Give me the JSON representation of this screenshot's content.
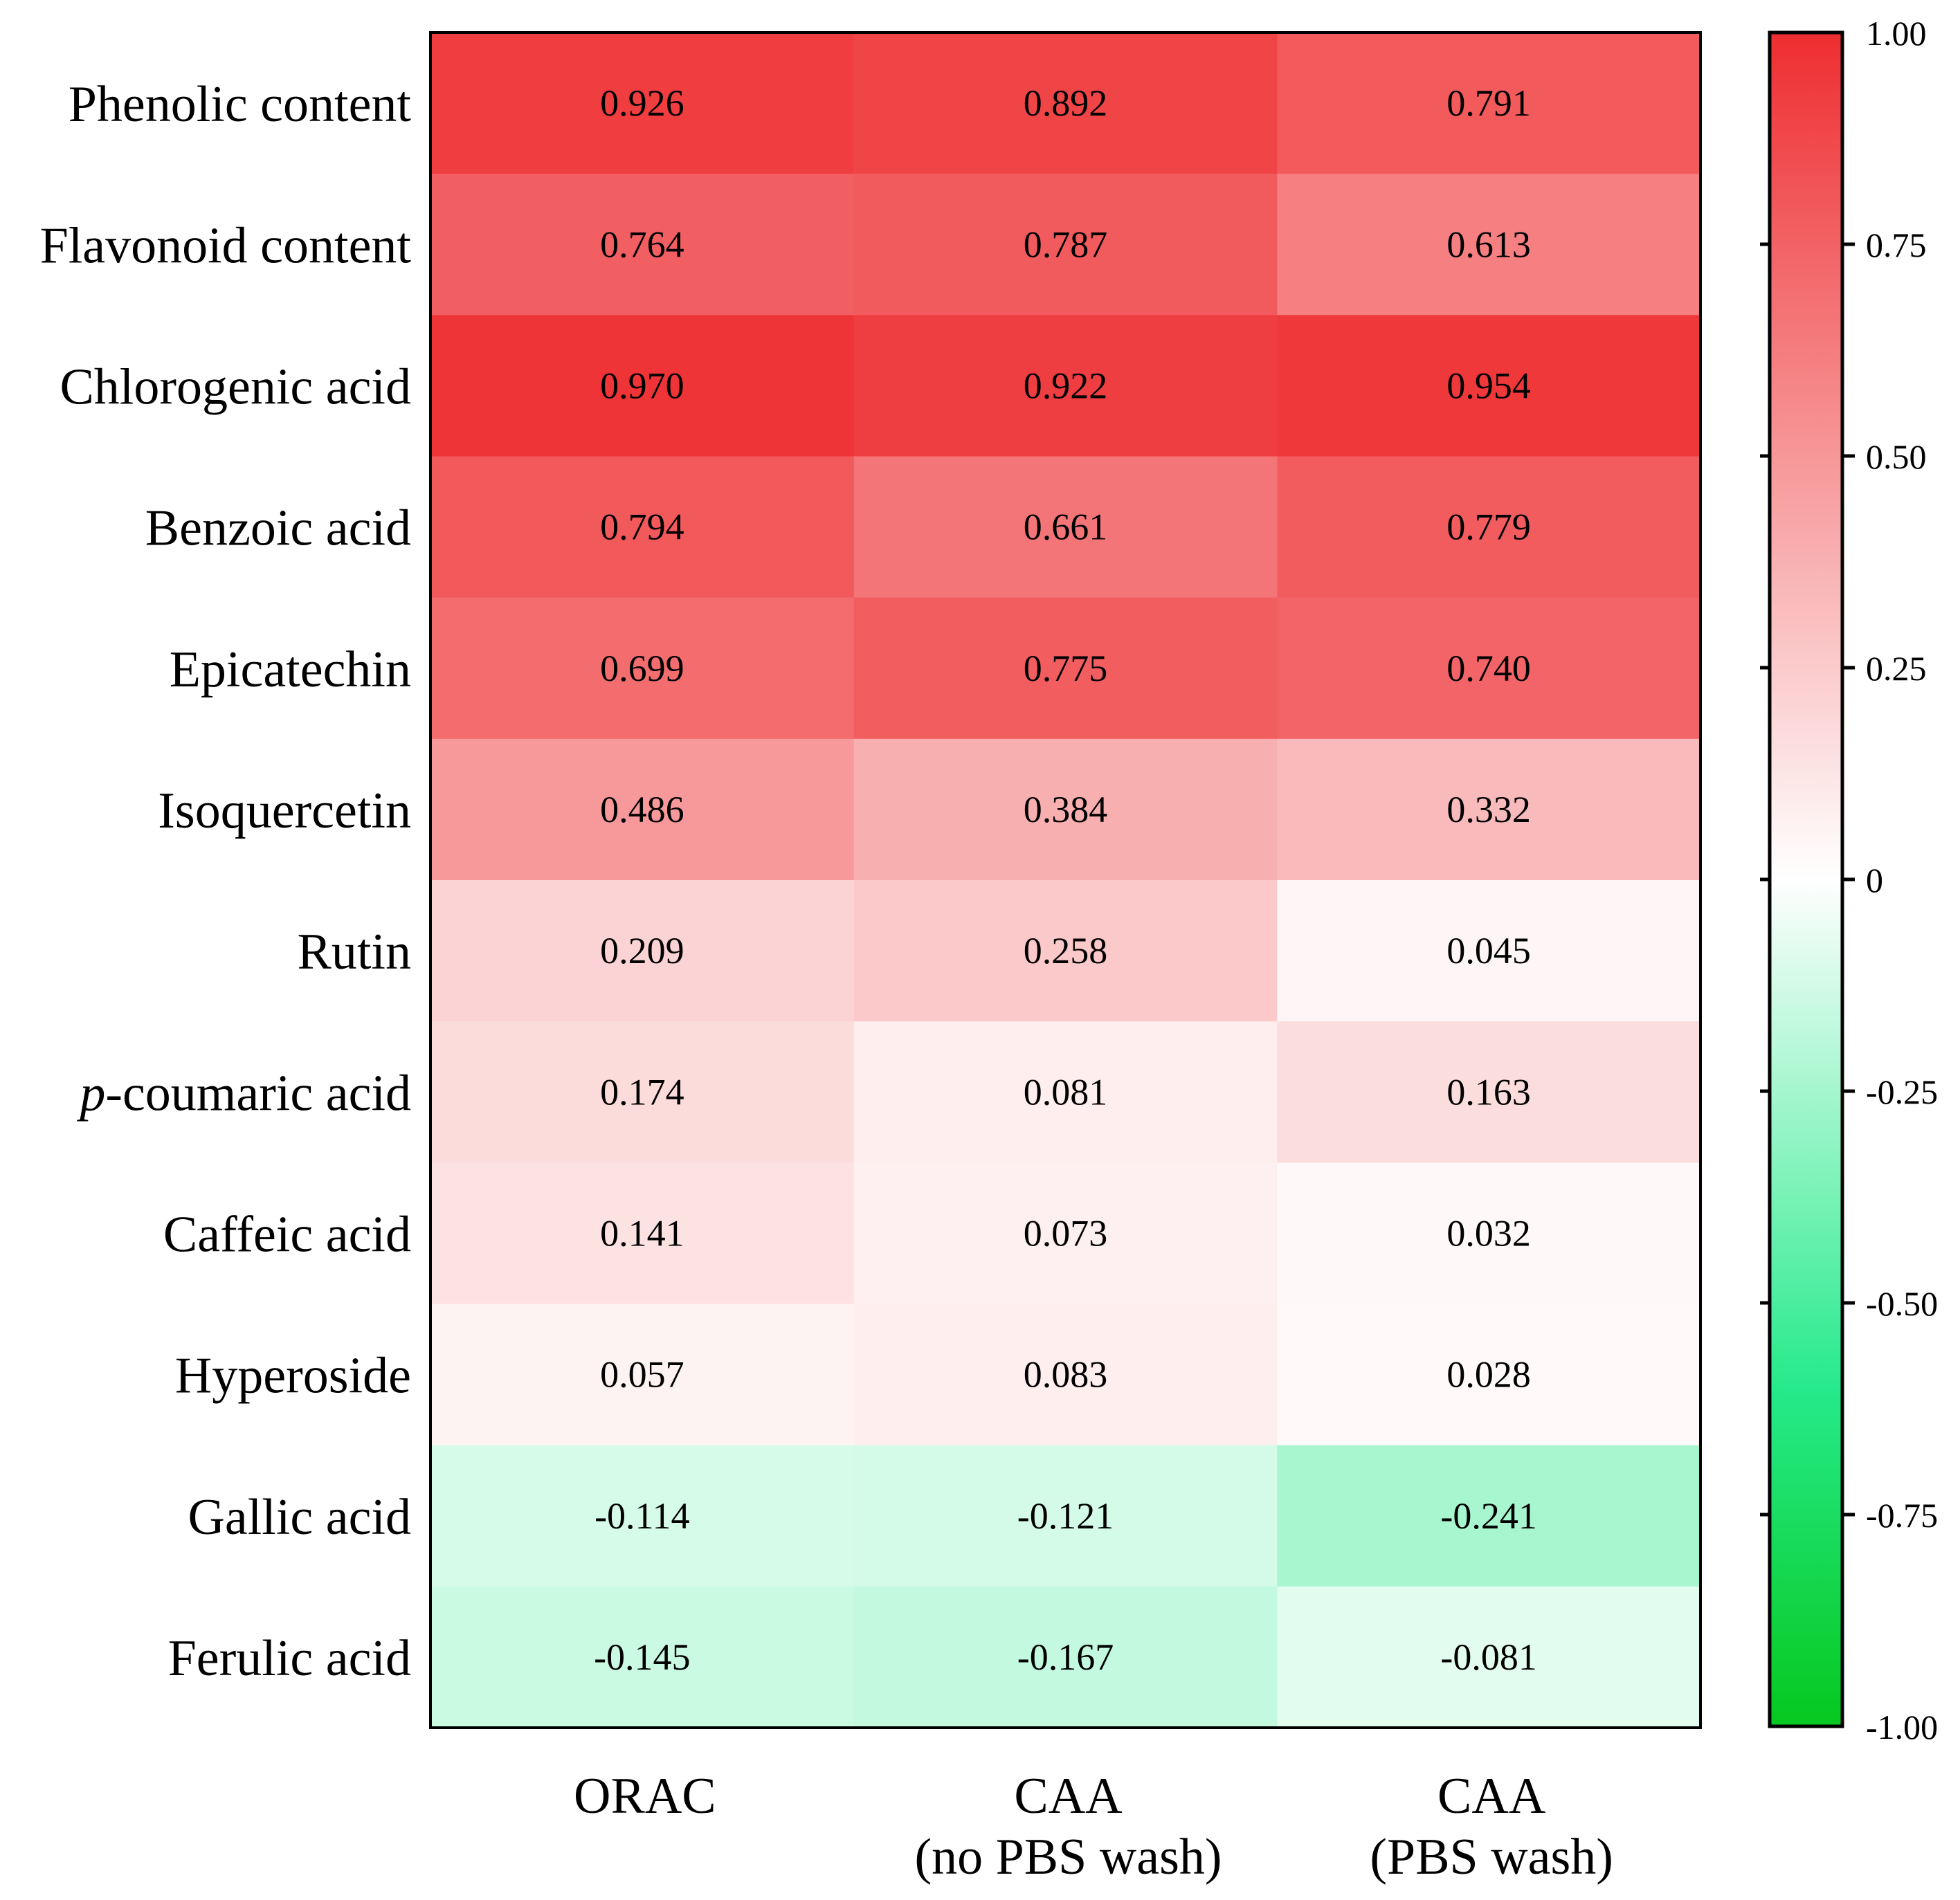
{
  "chart_data": {
    "type": "heatmap",
    "rows": [
      "Phenolic content",
      "Flavonoid content",
      "Chlorogenic acid",
      "Benzoic acid",
      "Epicatechin",
      "Isoquercetin",
      "Rutin",
      "p-coumaric acid",
      "Caffeic acid",
      "Hyperoside",
      "Gallic acid",
      "Ferulic acid"
    ],
    "columns": [
      [
        "ORAC"
      ],
      [
        "CAA",
        "(no PBS wash)"
      ],
      [
        "CAA",
        "(PBS wash)"
      ]
    ],
    "values": [
      [
        0.926,
        0.892,
        0.791
      ],
      [
        0.764,
        0.787,
        0.613
      ],
      [
        0.97,
        0.922,
        0.954
      ],
      [
        0.794,
        0.661,
        0.779
      ],
      [
        0.699,
        0.775,
        0.74
      ],
      [
        0.486,
        0.384,
        0.332
      ],
      [
        0.209,
        0.258,
        0.045
      ],
      [
        0.174,
        0.081,
        0.163
      ],
      [
        0.141,
        0.073,
        0.032
      ],
      [
        0.057,
        0.083,
        0.028
      ],
      [
        -0.114,
        -0.121,
        -0.241
      ],
      [
        -0.145,
        -0.167,
        -0.081
      ]
    ],
    "value_labels": [
      [
        "0.926",
        "0.892",
        "0.791"
      ],
      [
        "0.764",
        "0.787",
        "0.613"
      ],
      [
        "0.970",
        "0.922",
        "0.954"
      ],
      [
        "0.794",
        "0.661",
        "0.779"
      ],
      [
        "0.699",
        "0.775",
        "0.740"
      ],
      [
        "0.486",
        "0.384",
        "0.332"
      ],
      [
        "0.209",
        "0.258",
        "0.045"
      ],
      [
        "0.174",
        "0.081",
        "0.163"
      ],
      [
        "0.141",
        "0.073",
        "0.032"
      ],
      [
        "0.057",
        "0.083",
        "0.028"
      ],
      [
        "-0.114",
        "-0.121",
        "-0.241"
      ],
      [
        "-0.145",
        "-0.167",
        "-0.081"
      ]
    ],
    "colorbar": {
      "range": [
        -1.0,
        1.0
      ],
      "ticks": [
        1.0,
        0.75,
        0.5,
        0.25,
        0,
        -0.25,
        -0.5,
        -0.75,
        -1.0
      ],
      "tick_labels": [
        "1.00",
        "0.75",
        "0.50",
        "0.25",
        "0",
        "-0.25",
        "-0.50",
        "-0.75",
        "-1.00"
      ],
      "colors": {
        "max": "#ee2e31",
        "mid": "#ffffff",
        "min": "#06c81e",
        "mid_negative": "#00e676"
      }
    },
    "title": "",
    "xlabel": "",
    "ylabel": ""
  }
}
